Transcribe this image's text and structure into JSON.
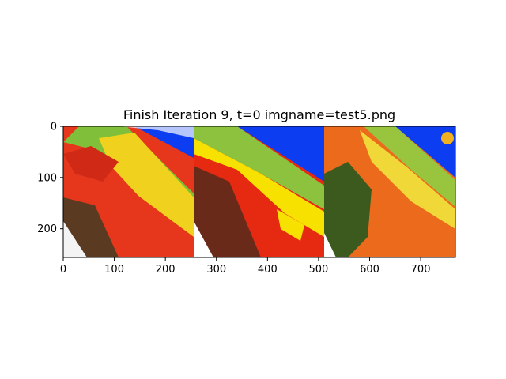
{
  "chart_data": {
    "type": "image",
    "title": "Finish Iteration 9, t=0 imgname=test5.png",
    "xlim": [
      0,
      768
    ],
    "ylim": [
      256,
      0
    ],
    "xticks": [
      0,
      100,
      200,
      300,
      400,
      500,
      600,
      700
    ],
    "yticks": [
      0,
      100,
      200
    ],
    "panels": [
      {
        "name": "panel-1",
        "x": [
          0,
          256
        ],
        "palette": [
          "#e6361c",
          "#f0d21e",
          "#7fbf3a",
          "#0c3df0",
          "#5a3a20",
          "#f4f4f4"
        ]
      },
      {
        "name": "panel-2",
        "x": [
          256,
          512
        ],
        "palette": [
          "#e62a12",
          "#f6e100",
          "#8cc23e",
          "#0c3df0",
          "#6a2a1a",
          "#ffffff"
        ]
      },
      {
        "name": "panel-3",
        "x": [
          512,
          768
        ],
        "palette": [
          "#ec6a1c",
          "#f0d838",
          "#98c43e",
          "#0c3df0",
          "#3c5a1e",
          "#ffffff"
        ]
      }
    ]
  }
}
